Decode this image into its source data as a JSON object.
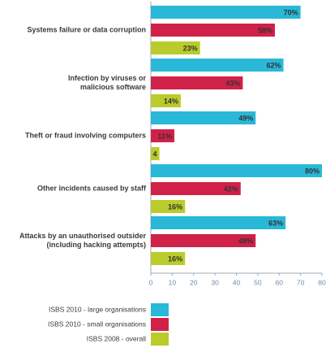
{
  "chart_data": {
    "type": "bar",
    "orientation": "horizontal",
    "categories": [
      [
        "Systems failure or data corruption"
      ],
      [
        "Infection by viruses or",
        "malicious software"
      ],
      [
        "Theft or fraud involving computers"
      ],
      [
        "Other incidents caused by staff"
      ],
      [
        "Attacks by an unauthorised outsider",
        "(including hacking attempts)"
      ]
    ],
    "series": [
      {
        "name": "ISBS 2010 - large organisations",
        "color": "#29b8d8",
        "values": [
          70,
          62,
          49,
          80,
          63
        ],
        "value_labels": [
          "70%",
          "62%",
          "49%",
          "80%",
          "63%"
        ]
      },
      {
        "name": "ISBS 2010 - small organisations",
        "color": "#d02148",
        "values": [
          58,
          43,
          11,
          42,
          49
        ],
        "value_labels": [
          "58%",
          "43%",
          "11%",
          "42%",
          "49%"
        ]
      },
      {
        "name": "ISBS 2008 - overall",
        "color": "#b9cc2b",
        "values": [
          23,
          14,
          4,
          16,
          16
        ],
        "value_labels": [
          "23%",
          "14%",
          "4",
          "16%",
          "16%"
        ]
      }
    ],
    "xlim": [
      0,
      80
    ],
    "xticks": [
      0,
      10,
      20,
      30,
      40,
      50,
      60,
      70,
      80
    ]
  }
}
